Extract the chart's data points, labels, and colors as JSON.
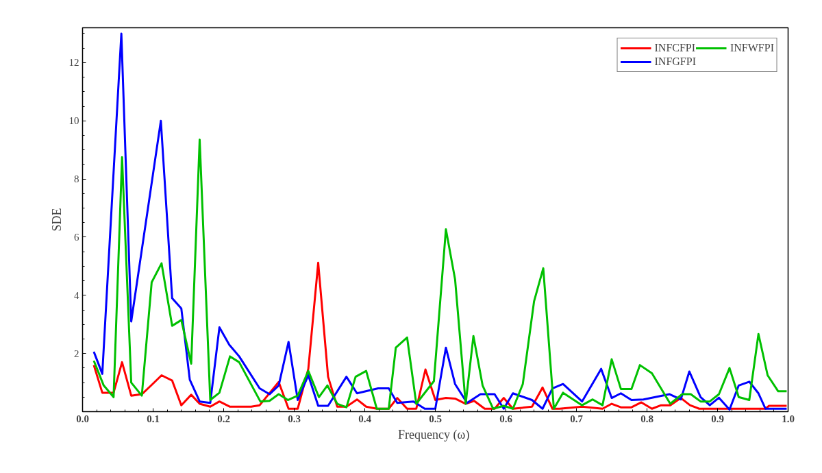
{
  "chart_data": {
    "type": "line",
    "xlabel": "Frequency  (ω)",
    "ylabel": "SDE",
    "xlim": [
      0,
      1
    ],
    "ylim": [
      0,
      13.2
    ],
    "xticks": [
      {
        "value": 0,
        "label": "0.0"
      },
      {
        "value": 0.1,
        "label": "0.1"
      },
      {
        "value": 0.2,
        "label": "0.2"
      },
      {
        "value": 0.3,
        "label": "0.3"
      },
      {
        "value": 0.4,
        "label": "0.4"
      },
      {
        "value": 0.5,
        "label": "0.5"
      },
      {
        "value": 0.6,
        "label": "0.6"
      },
      {
        "value": 0.7,
        "label": "0.7"
      },
      {
        "value": 0.8,
        "label": "0.8"
      },
      {
        "value": 0.9,
        "label": "0.9"
      },
      {
        "value": 1,
        "label": "1.0"
      }
    ],
    "yticks": [
      2,
      4,
      6,
      8,
      10,
      12
    ],
    "grid": false,
    "legend": "top right",
    "line_style": "solid",
    "series": [
      {
        "name": "INFCFPI",
        "color": "#ff0000",
        "x": [
          0.016,
          0.028,
          0.044,
          0.056,
          0.069,
          0.084,
          0.098,
          0.112,
          0.127,
          0.14,
          0.154,
          0.166,
          0.181,
          0.194,
          0.209,
          0.239,
          0.251,
          0.278,
          0.292,
          0.305,
          0.32,
          0.334,
          0.348,
          0.361,
          0.374,
          0.389,
          0.402,
          0.417,
          0.434,
          0.446,
          0.46,
          0.473,
          0.486,
          0.5,
          0.515,
          0.528,
          0.543,
          0.555,
          0.57,
          0.584,
          0.597,
          0.61,
          0.637,
          0.652,
          0.666,
          0.676,
          0.708,
          0.737,
          0.75,
          0.763,
          0.778,
          0.792,
          0.807,
          0.82,
          0.833,
          0.848,
          0.861,
          0.874,
          0.968,
          0.973,
          0.998
        ],
        "values": [
          1.6,
          0.65,
          0.65,
          1.7,
          0.55,
          0.6,
          0.92,
          1.25,
          1.07,
          0.22,
          0.58,
          0.27,
          0.17,
          0.35,
          0.17,
          0.17,
          0.22,
          1.02,
          0.1,
          0.1,
          1.47,
          5.12,
          1.2,
          0.17,
          0.17,
          0.42,
          0.17,
          0.1,
          0.1,
          0.47,
          0.1,
          0.1,
          1.45,
          0.4,
          0.47,
          0.45,
          0.27,
          0.37,
          0.1,
          0.1,
          0.47,
          0.1,
          0.17,
          0.83,
          0.1,
          0.1,
          0.17,
          0.1,
          0.27,
          0.15,
          0.15,
          0.32,
          0.1,
          0.22,
          0.22,
          0.47,
          0.22,
          0.1,
          0.1,
          0.2,
          0.2
        ]
      },
      {
        "name": "INFGFPI",
        "color": "#0000ff",
        "x": [
          0.016,
          0.028,
          0.055,
          0.069,
          0.111,
          0.127,
          0.14,
          0.152,
          0.166,
          0.181,
          0.194,
          0.208,
          0.222,
          0.251,
          0.265,
          0.278,
          0.292,
          0.305,
          0.32,
          0.334,
          0.348,
          0.374,
          0.389,
          0.419,
          0.434,
          0.446,
          0.469,
          0.485,
          0.5,
          0.515,
          0.528,
          0.545,
          0.564,
          0.584,
          0.597,
          0.61,
          0.637,
          0.652,
          0.666,
          0.681,
          0.708,
          0.735,
          0.75,
          0.763,
          0.778,
          0.795,
          0.832,
          0.848,
          0.86,
          0.876,
          0.889,
          0.902,
          0.917,
          0.93,
          0.945,
          0.958,
          0.968,
          0.998
        ],
        "values": [
          2.06,
          1.3,
          13.0,
          3.1,
          10.0,
          3.9,
          3.55,
          1.1,
          0.35,
          0.3,
          2.9,
          2.3,
          1.9,
          0.8,
          0.6,
          0.9,
          2.4,
          0.4,
          1.25,
          0.2,
          0.2,
          1.2,
          0.63,
          0.8,
          0.8,
          0.3,
          0.35,
          0.1,
          0.1,
          2.2,
          0.95,
          0.3,
          0.6,
          0.6,
          0.1,
          0.63,
          0.4,
          0.1,
          0.8,
          0.95,
          0.35,
          1.47,
          0.47,
          0.63,
          0.4,
          0.42,
          0.6,
          0.42,
          1.38,
          0.5,
          0.22,
          0.48,
          0.07,
          0.9,
          1.03,
          0.63,
          0.1,
          0.1
        ]
      },
      {
        "name": "INFWFPI",
        "color": "#00c000",
        "x": [
          0.016,
          0.03,
          0.044,
          0.056,
          0.069,
          0.084,
          0.098,
          0.112,
          0.127,
          0.14,
          0.154,
          0.166,
          0.181,
          0.194,
          0.209,
          0.222,
          0.252,
          0.265,
          0.278,
          0.291,
          0.305,
          0.32,
          0.335,
          0.347,
          0.361,
          0.374,
          0.387,
          0.402,
          0.417,
          0.434,
          0.444,
          0.46,
          0.473,
          0.498,
          0.515,
          0.528,
          0.543,
          0.554,
          0.567,
          0.582,
          0.597,
          0.61,
          0.624,
          0.64,
          0.653,
          0.668,
          0.681,
          0.708,
          0.723,
          0.737,
          0.75,
          0.763,
          0.778,
          0.79,
          0.807,
          0.833,
          0.85,
          0.862,
          0.876,
          0.889,
          0.902,
          0.917,
          0.93,
          0.945,
          0.958,
          0.971,
          0.986,
          0.998
        ],
        "values": [
          1.75,
          0.9,
          0.5,
          8.75,
          1.0,
          0.55,
          4.45,
          5.1,
          2.95,
          3.15,
          1.65,
          9.35,
          0.4,
          0.65,
          1.9,
          1.7,
          0.35,
          0.37,
          0.6,
          0.4,
          0.55,
          1.4,
          0.5,
          0.9,
          0.27,
          0.15,
          1.2,
          1.4,
          0.1,
          0.1,
          2.2,
          2.55,
          0.27,
          1.05,
          6.27,
          4.55,
          0.27,
          2.6,
          0.9,
          0.1,
          0.2,
          0.1,
          0.95,
          3.8,
          4.93,
          0.1,
          0.65,
          0.22,
          0.42,
          0.22,
          1.8,
          0.78,
          0.78,
          1.6,
          1.32,
          0.27,
          0.6,
          0.6,
          0.35,
          0.35,
          0.6,
          1.5,
          0.5,
          0.4,
          2.67,
          1.25,
          0.7,
          0.7
        ]
      }
    ]
  }
}
